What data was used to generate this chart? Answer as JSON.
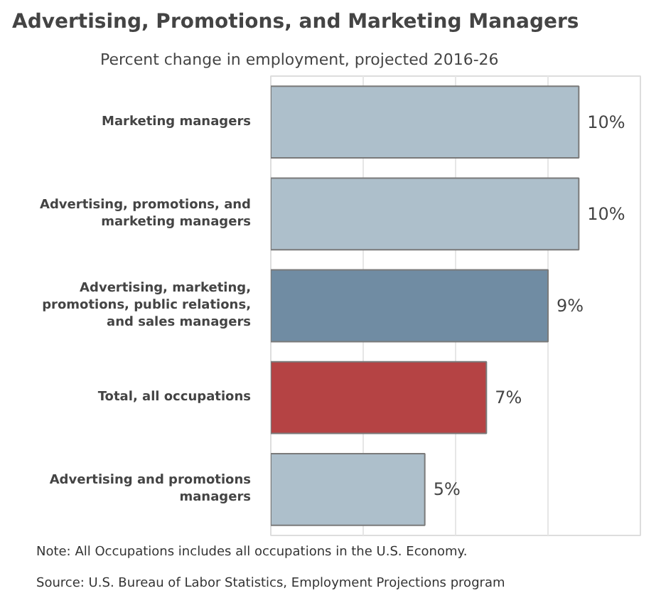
{
  "chart_data": {
    "type": "bar",
    "orientation": "horizontal",
    "title": "Advertising, Promotions, and Marketing Managers",
    "subtitle": "Percent change in employment, projected 2016-26",
    "categories": [
      "Marketing managers",
      "Advertising, promotions, and marketing managers",
      "Advertising, marketing, promotions, public relations, and sales managers",
      "Total, all occupations",
      "Advertising and promotions managers"
    ],
    "values": [
      10,
      10,
      9,
      7,
      5
    ],
    "colors": [
      "#adbfcb",
      "#adbfcb",
      "#708ca3",
      "#b54344",
      "#adbfcb"
    ],
    "value_labels": [
      "10%",
      "10%",
      "9%",
      "7%",
      "5%"
    ],
    "xlim": [
      0,
      12
    ],
    "xticks": [
      {
        "value": 3,
        "label": null
      },
      {
        "value": 6,
        "label": null
      },
      {
        "value": 9,
        "label": null
      }
    ],
    "tick_labels": "y",
    "grid": "x",
    "annotations": [
      "Note: All Occupations includes all occupations in the U.S. Economy.",
      "Source: U.S. Bureau of Labor Statistics, Employment Projections program"
    ]
  }
}
